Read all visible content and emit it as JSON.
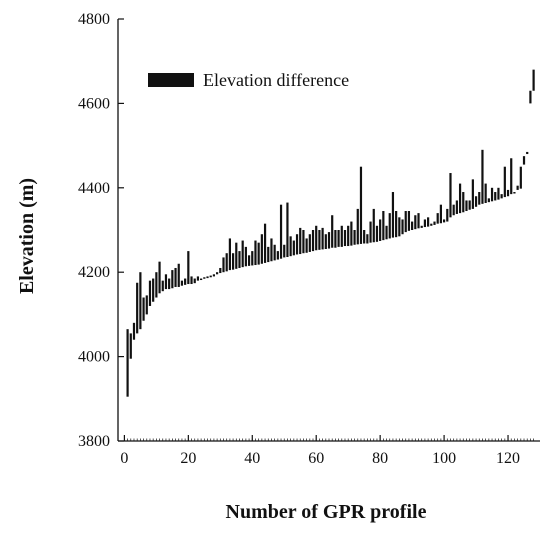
{
  "chart_data": {
    "type": "bar",
    "subtype": "floating-range",
    "xlabel": "Number of GPR profile",
    "ylabel": "Elevation (m)",
    "xlim": [
      -2,
      130
    ],
    "ylim": [
      3800,
      4800
    ],
    "xticks": [
      0,
      20,
      40,
      60,
      80,
      100,
      120
    ],
    "yticks": [
      3800,
      4000,
      4200,
      4400,
      4600,
      4800
    ],
    "legend": {
      "label": "Elevation difference",
      "position": "top-left",
      "color": "#111111"
    },
    "series": [
      {
        "name": "Elevation difference",
        "x": [
          1,
          2,
          3,
          4,
          5,
          6,
          7,
          8,
          9,
          10,
          11,
          12,
          13,
          14,
          15,
          16,
          17,
          18,
          19,
          20,
          21,
          22,
          23,
          24,
          25,
          26,
          27,
          28,
          29,
          30,
          31,
          32,
          33,
          34,
          35,
          36,
          37,
          38,
          39,
          40,
          41,
          42,
          43,
          44,
          45,
          46,
          47,
          48,
          49,
          50,
          51,
          52,
          53,
          54,
          55,
          56,
          57,
          58,
          59,
          60,
          61,
          62,
          63,
          64,
          65,
          66,
          67,
          68,
          69,
          70,
          71,
          72,
          73,
          74,
          75,
          76,
          77,
          78,
          79,
          80,
          81,
          82,
          83,
          84,
          85,
          86,
          87,
          88,
          89,
          90,
          91,
          92,
          93,
          94,
          95,
          96,
          97,
          98,
          99,
          100,
          101,
          102,
          103,
          104,
          105,
          106,
          107,
          108,
          109,
          110,
          111,
          112,
          113,
          114,
          115,
          116,
          117,
          118,
          119,
          120,
          121,
          122,
          123,
          124,
          125,
          126,
          127,
          128
        ],
        "low": [
          3905,
          3995,
          4040,
          4055,
          4065,
          4085,
          4100,
          4120,
          4130,
          4140,
          4150,
          4155,
          4160,
          4160,
          4162,
          4165,
          4165,
          4168,
          4170,
          4172,
          4172,
          4174,
          4180,
          4182,
          4185,
          4186,
          4188,
          4190,
          4195,
          4198,
          4200,
          4202,
          4205,
          4206,
          4208,
          4210,
          4212,
          4214,
          4215,
          4216,
          4217,
          4218,
          4220,
          4222,
          4224,
          4226,
          4228,
          4230,
          4232,
          4235,
          4236,
          4238,
          4240,
          4242,
          4243,
          4245,
          4246,
          4248,
          4250,
          4252,
          4253,
          4254,
          4255,
          4256,
          4258,
          4258,
          4260,
          4260,
          4262,
          4262,
          4263,
          4265,
          4266,
          4267,
          4268,
          4268,
          4270,
          4271,
          4272,
          4274,
          4276,
          4278,
          4280,
          4282,
          4283,
          4285,
          4290,
          4295,
          4298,
          4300,
          4302,
          4304,
          4305,
          4307,
          4308,
          4310,
          4312,
          4315,
          4316,
          4318,
          4320,
          4330,
          4335,
          4338,
          4340,
          4342,
          4345,
          4348,
          4350,
          4355,
          4360,
          4362,
          4364,
          4366,
          4368,
          4370,
          4372,
          4375,
          4378,
          4380,
          4385,
          4388,
          4395,
          4398,
          4455,
          4480,
          4600,
          4630
        ],
        "high": [
          4065,
          4055,
          4080,
          4175,
          4200,
          4140,
          4145,
          4180,
          4185,
          4200,
          4225,
          4180,
          4195,
          4185,
          4205,
          4210,
          4220,
          4180,
          4185,
          4250,
          4190,
          4185,
          4190,
          4185,
          4188,
          4190,
          4192,
          4195,
          4200,
          4210,
          4235,
          4245,
          4280,
          4245,
          4270,
          4250,
          4275,
          4260,
          4240,
          4250,
          4275,
          4270,
          4290,
          4315,
          4260,
          4280,
          4265,
          4250,
          4360,
          4265,
          4365,
          4285,
          4275,
          4290,
          4305,
          4300,
          4280,
          4290,
          4300,
          4310,
          4300,
          4305,
          4290,
          4295,
          4335,
          4300,
          4300,
          4310,
          4300,
          4310,
          4320,
          4300,
          4350,
          4450,
          4300,
          4290,
          4320,
          4350,
          4310,
          4325,
          4345,
          4310,
          4340,
          4390,
          4345,
          4330,
          4325,
          4345,
          4345,
          4320,
          4335,
          4340,
          4310,
          4325,
          4330,
          4315,
          4320,
          4340,
          4360,
          4325,
          4350,
          4435,
          4360,
          4370,
          4410,
          4390,
          4370,
          4370,
          4420,
          4380,
          4390,
          4490,
          4410,
          4375,
          4400,
          4390,
          4400,
          4385,
          4450,
          4395,
          4470,
          4390,
          4405,
          4450,
          4475,
          4485,
          4630,
          4680
        ]
      }
    ]
  }
}
